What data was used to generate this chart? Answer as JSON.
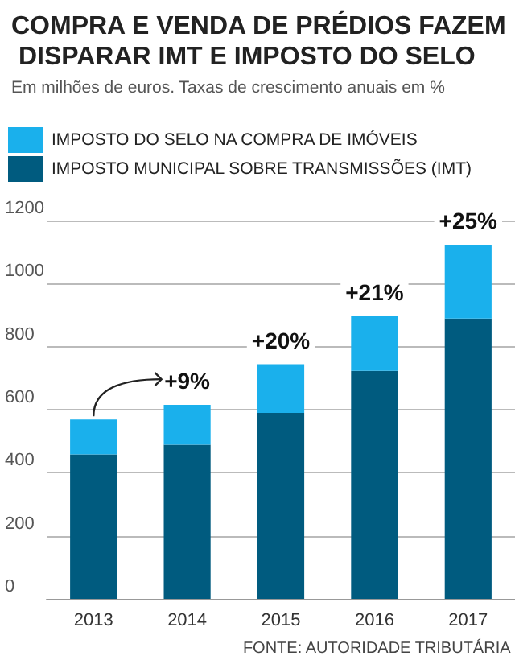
{
  "chart_data": {
    "type": "bar",
    "title": "COMPRA E VENDA DE PRÉDIOS FAZEM DISPARAR IMT E IMPOSTO DO SELO",
    "subtitle": "Em milhões de euros. Taxas de crescimento anuais em %",
    "categories": [
      "2013",
      "2014",
      "2015",
      "2016",
      "2017"
    ],
    "series": [
      {
        "name": "IMPOSTO MUNICIPAL SOBRE TRANSMISSÕES (IMT)",
        "color": "#005b7f",
        "values": [
          458,
          489,
          590,
          723,
          889
        ]
      },
      {
        "name": "IMPOSTO DO SELO NA COMPRA DE IMÓVEIS",
        "color": "#1ab0ec",
        "values": [
          111,
          126,
          154,
          173,
          234
        ]
      }
    ],
    "stacked": true,
    "ylim": [
      0,
      1200
    ],
    "yticks": [
      0,
      200,
      400,
      600,
      800,
      1000,
      1200
    ],
    "grid": "y",
    "legend": "top left",
    "annotations": [
      {
        "text": "+9%",
        "x": "2014",
        "y": 615
      },
      {
        "text": "+20%",
        "x": "2015",
        "y": 744
      },
      {
        "text": "+21%",
        "x": "2016",
        "y": 896
      },
      {
        "text": "+25%",
        "x": "2017",
        "y": 1123
      },
      "FONTE: AUTORIDADE TRIBUTÁRIA"
    ]
  }
}
